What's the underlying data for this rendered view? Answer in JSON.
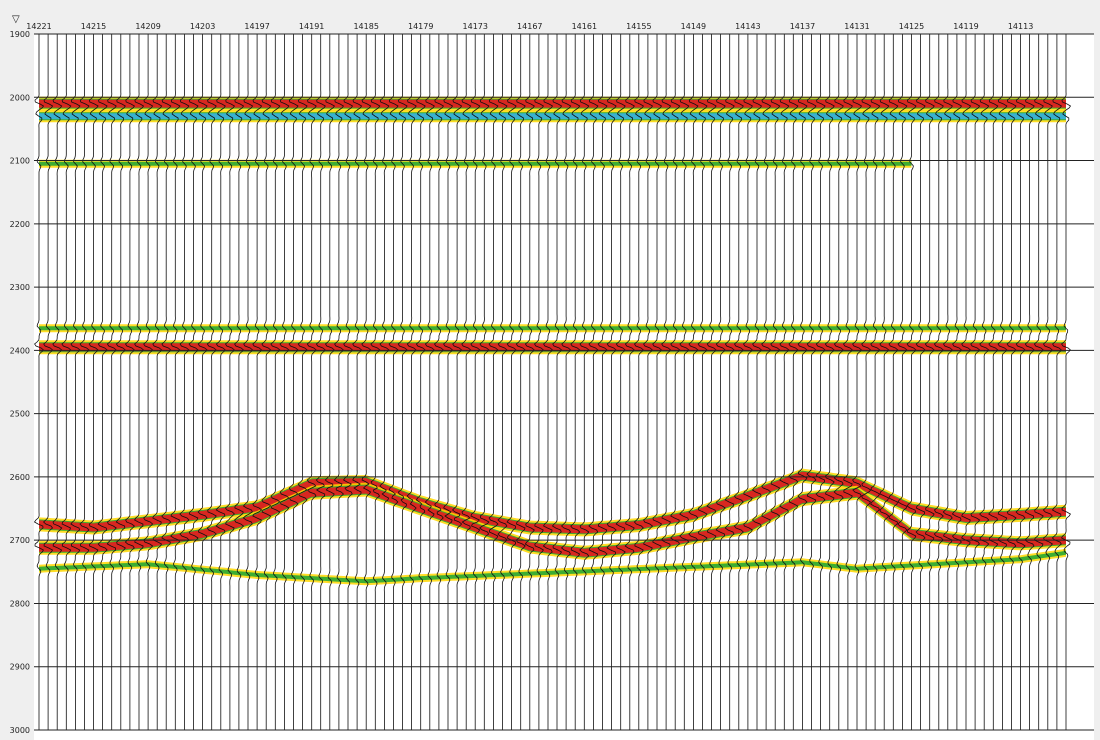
{
  "marker_glyph": "▽",
  "chart_data": {
    "type": "seismic-wiggle",
    "x_labels": [
      "14221",
      "14215",
      "14209",
      "14203",
      "14197",
      "14191",
      "14185",
      "14179",
      "14173",
      "14167",
      "14161",
      "14155",
      "14149",
      "14143",
      "14137",
      "14131",
      "14125",
      "14119",
      "14113"
    ],
    "x_label_traces": [
      14221,
      14215,
      14209,
      14203,
      14197,
      14191,
      14185,
      14179,
      14173,
      14167,
      14161,
      14155,
      14149,
      14143,
      14137,
      14131,
      14125,
      14119,
      14113
    ],
    "trace_range": [
      14221,
      14108
    ],
    "y_ticks": [
      "1900",
      "2000",
      "2100",
      "2200",
      "2300",
      "2400",
      "2500",
      "2600",
      "2700",
      "2800",
      "2900",
      "3000"
    ],
    "ylim": [
      1900,
      3000
    ],
    "grid": true,
    "colors": {
      "background": "#ffffff",
      "page": "#efefef",
      "wiggle": "#111111",
      "gridline": "#222222",
      "red": "#e02020",
      "yellow": "#ffd700",
      "green": "#33aa33",
      "cyan": "#38b0d8"
    },
    "horizons": [
      {
        "name": "h2010",
        "points": [
          [
            14221,
            2010
          ],
          [
            14108,
            2010
          ]
        ],
        "amplitude": "strong"
      },
      {
        "name": "h2030",
        "points": [
          [
            14221,
            2030
          ],
          [
            14108,
            2030
          ]
        ],
        "amplitude": "medium"
      },
      {
        "name": "h2105",
        "points": [
          [
            14221,
            2105
          ],
          [
            14125,
            2105
          ]
        ],
        "amplitude": "weak"
      },
      {
        "name": "h2365",
        "points": [
          [
            14221,
            2365
          ],
          [
            14108,
            2365
          ]
        ],
        "amplitude": "weak"
      },
      {
        "name": "h2395",
        "points": [
          [
            14221,
            2395
          ],
          [
            14108,
            2395
          ]
        ],
        "amplitude": "strong"
      },
      {
        "name": "channel_top",
        "points": [
          [
            14221,
            2675
          ],
          [
            14215,
            2680
          ],
          [
            14209,
            2670
          ],
          [
            14203,
            2660
          ],
          [
            14197,
            2648
          ],
          [
            14191,
            2610
          ],
          [
            14185,
            2608
          ],
          [
            14179,
            2640
          ],
          [
            14173,
            2665
          ],
          [
            14167,
            2680
          ],
          [
            14161,
            2683
          ],
          [
            14155,
            2676
          ],
          [
            14149,
            2660
          ],
          [
            14143,
            2630
          ],
          [
            14137,
            2598
          ],
          [
            14131,
            2610
          ],
          [
            14125,
            2650
          ],
          [
            14119,
            2665
          ],
          [
            14113,
            2660
          ],
          [
            14108,
            2655
          ]
        ],
        "amplitude": "strong"
      },
      {
        "name": "channel_base",
        "points": [
          [
            14221,
            2712
          ],
          [
            14215,
            2712
          ],
          [
            14209,
            2705
          ],
          [
            14203,
            2690
          ],
          [
            14197,
            2665
          ],
          [
            14191,
            2625
          ],
          [
            14185,
            2620
          ],
          [
            14179,
            2650
          ],
          [
            14173,
            2680
          ],
          [
            14167,
            2710
          ],
          [
            14161,
            2720
          ],
          [
            14155,
            2712
          ],
          [
            14149,
            2695
          ],
          [
            14143,
            2680
          ],
          [
            14137,
            2635
          ],
          [
            14131,
            2625
          ],
          [
            14125,
            2690
          ],
          [
            14119,
            2700
          ],
          [
            14113,
            2705
          ],
          [
            14108,
            2700
          ]
        ],
        "amplitude": "strong"
      },
      {
        "name": "lower_patches",
        "points": [
          [
            14221,
            2745
          ],
          [
            14209,
            2738
          ],
          [
            14197,
            2755
          ],
          [
            14185,
            2765
          ],
          [
            14179,
            2760
          ],
          [
            14137,
            2735
          ],
          [
            14131,
            2745
          ],
          [
            14125,
            2740
          ],
          [
            14113,
            2730
          ],
          [
            14108,
            2720
          ]
        ],
        "amplitude": "weak"
      }
    ]
  }
}
